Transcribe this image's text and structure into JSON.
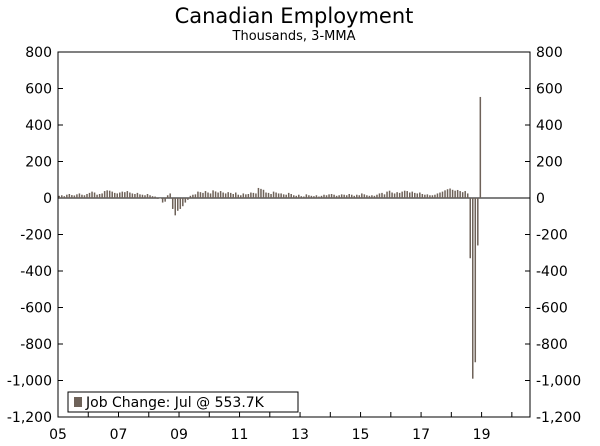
{
  "chart_data": {
    "type": "bar",
    "title": "Canadian Employment",
    "subtitle": "Thousands, 3-MMA",
    "y_ticks": [
      "800",
      "600",
      "400",
      "200",
      "0",
      "-200",
      "-400",
      "-600",
      "-800",
      "-1,000",
      "-1,200"
    ],
    "y_tick_values": [
      800,
      600,
      400,
      200,
      0,
      -200,
      -400,
      -600,
      -800,
      -1000,
      -1200
    ],
    "x_ticks": [
      "05",
      "07",
      "09",
      "11",
      "13",
      "15",
      "17",
      "19"
    ],
    "x_tick_years": [
      2005,
      2007,
      2009,
      2011,
      2013,
      2015,
      2017,
      2019
    ],
    "xlim": [
      2005.0,
      2020.6
    ],
    "ylim": [
      -1200,
      800
    ],
    "grid": false,
    "legend_position": "bottom-left",
    "series": [
      {
        "name": "Job Change: Jul @ 553.7K",
        "color": "#6e6259",
        "start": "2005-01",
        "values": [
          12,
          15,
          10,
          18,
          22,
          16,
          14,
          20,
          25,
          18,
          15,
          22,
          28,
          35,
          30,
          18,
          22,
          25,
          38,
          42,
          40,
          35,
          28,
          25,
          30,
          35,
          32,
          38,
          30,
          25,
          22,
          28,
          20,
          18,
          15,
          22,
          15,
          10,
          8,
          -5,
          0,
          -25,
          -20,
          15,
          25,
          -60,
          -95,
          -70,
          -60,
          -45,
          -25,
          -10,
          12,
          18,
          20,
          35,
          32,
          28,
          38,
          30,
          25,
          42,
          36,
          30,
          38,
          30,
          25,
          32,
          28,
          22,
          30,
          18,
          15,
          25,
          20,
          22,
          30,
          28,
          25,
          55,
          50,
          45,
          30,
          28,
          22,
          35,
          30,
          25,
          25,
          20,
          18,
          28,
          22,
          15,
          12,
          18,
          10,
          8,
          20,
          15,
          12,
          10,
          15,
          8,
          12,
          18,
          15,
          20,
          22,
          18,
          12,
          15,
          20,
          18,
          15,
          22,
          18,
          12,
          18,
          15,
          25,
          20,
          15,
          12,
          15,
          12,
          18,
          25,
          28,
          20,
          35,
          40,
          30,
          25,
          32,
          28,
          35,
          40,
          38,
          30,
          35,
          28,
          25,
          30,
          22,
          18,
          20,
          15,
          15,
          18,
          25,
          30,
          35,
          42,
          48,
          52,
          45,
          40,
          44,
          38,
          32,
          38,
          25,
          -330,
          -990,
          -900,
          -260,
          553.7
        ]
      }
    ]
  }
}
